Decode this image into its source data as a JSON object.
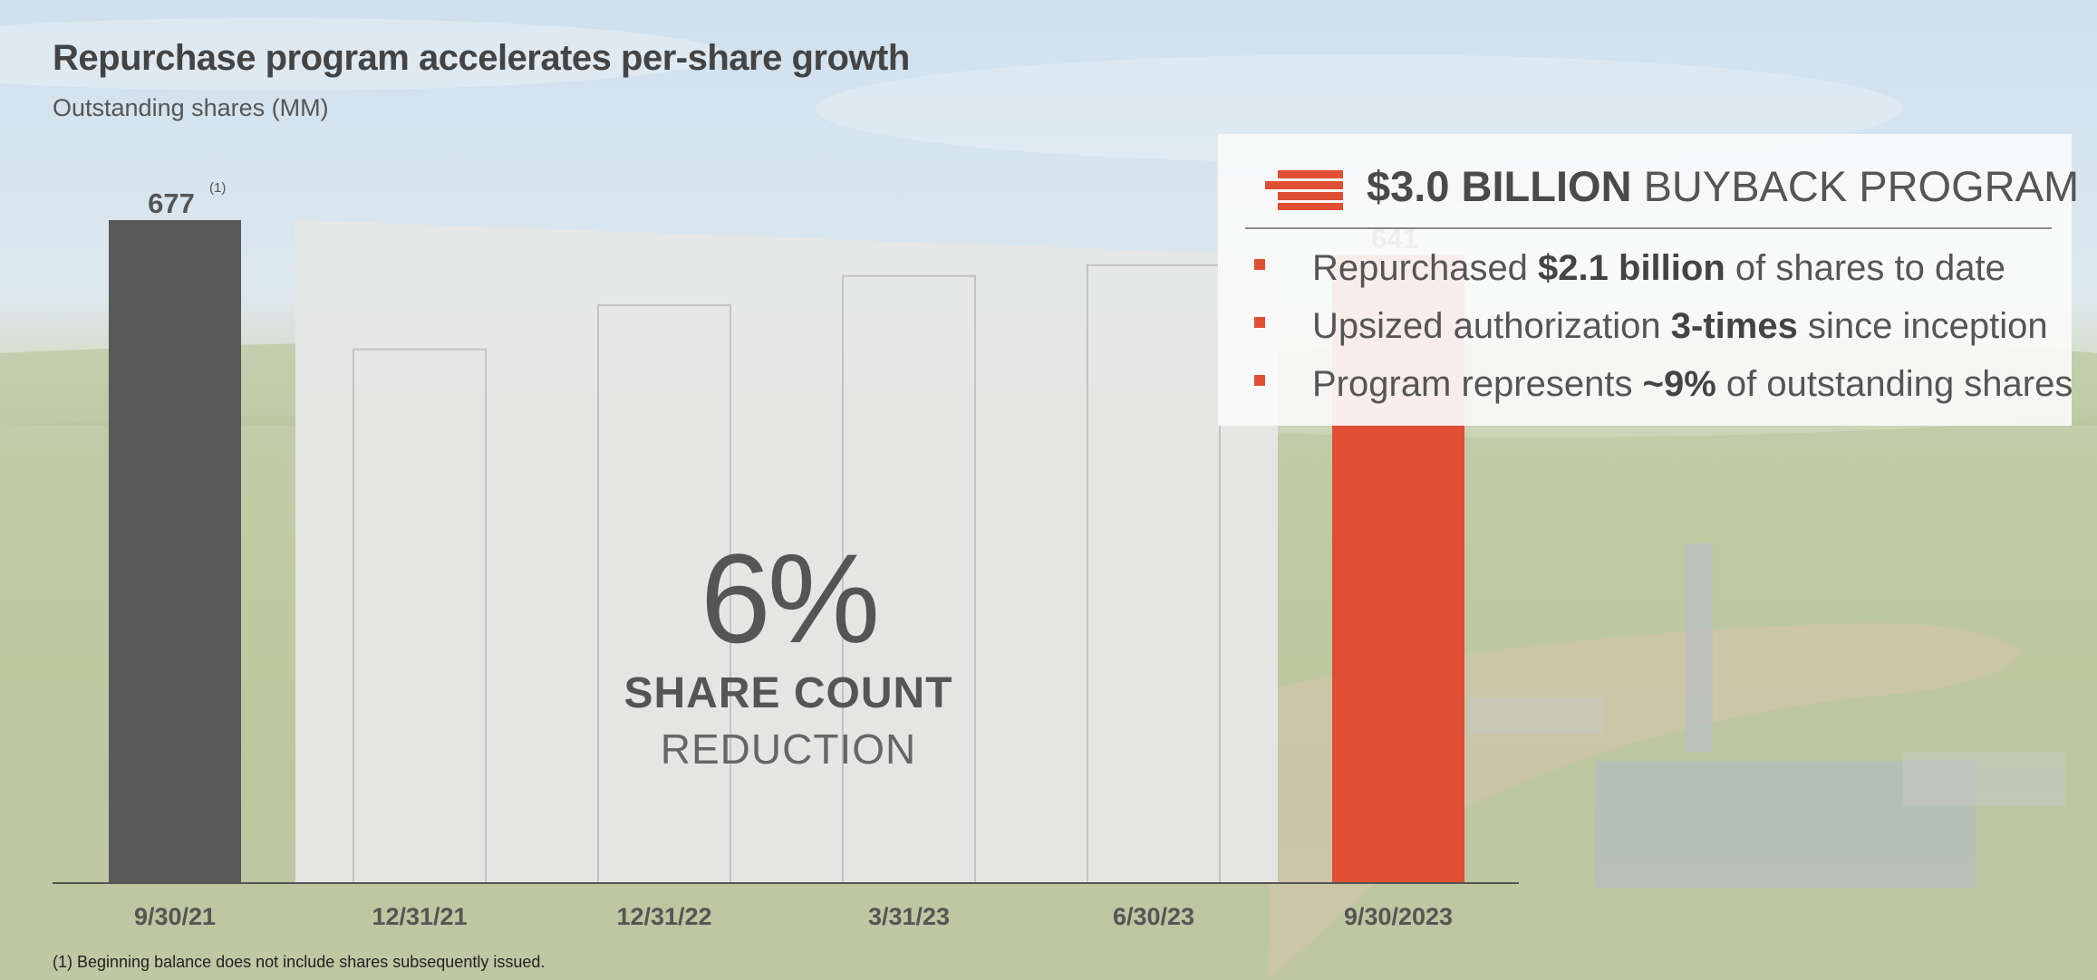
{
  "title": "Repurchase program accelerates per-share growth",
  "subtitle": "Outstanding shares (MM)",
  "footnote": "(1) Beginning balance does not include shares subsequently issued.",
  "center_label": {
    "percent": "6%",
    "line1": "SHARE COUNT",
    "line2": "REDUCTION"
  },
  "callout": {
    "heading_bold": "$3.0 BILLION",
    "heading_rest": " BUYBACK PROGRAM",
    "bullets": [
      {
        "pre": "Repurchased ",
        "bold": "$2.1 billion",
        "post": " of shares to date"
      },
      {
        "pre": "Upsized authorization ",
        "bold": "3-times",
        "post": " since inception"
      },
      {
        "pre": "Program represents ",
        "bold": "~9%",
        "post": " of outstanding shares"
      }
    ]
  },
  "colors": {
    "start_bar": "#595959",
    "end_bar": "#e04e33",
    "wedge": "#e6e6e6",
    "outline_bar": "#c3c3c3",
    "accent": "#e04e33"
  },
  "chart_data": {
    "type": "bar",
    "title": "Outstanding shares (MM)",
    "categories": [
      "9/30/21",
      "12/31/21",
      "12/31/22",
      "3/31/23",
      "6/30/23",
      "9/30/2023"
    ],
    "values": [
      677,
      545,
      590,
      620,
      631,
      641
    ],
    "labeled_values": [
      677,
      null,
      null,
      null,
      null,
      641
    ],
    "label_superscripts": [
      "(1)",
      "",
      "",
      "",
      "",
      ""
    ],
    "styles": [
      "solid-dark",
      "outline",
      "outline",
      "outline",
      "outline",
      "solid-accent"
    ],
    "ylim": [
      0,
      677
    ],
    "grid": false
  }
}
